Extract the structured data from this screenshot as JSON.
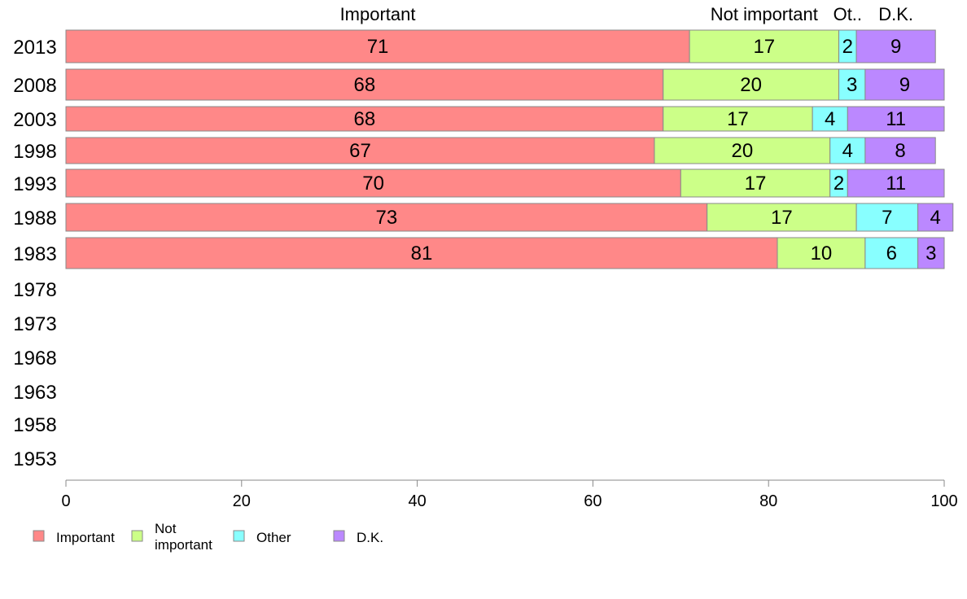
{
  "chart_data": {
    "type": "bar",
    "orientation": "horizontal",
    "stacked": true,
    "categories": [
      "2013",
      "2008",
      "2003",
      "1998",
      "1993",
      "1988",
      "1983",
      "1978",
      "1973",
      "1968",
      "1963",
      "1958",
      "1953"
    ],
    "series": [
      {
        "name": "Important",
        "legend_label": [
          "Important"
        ],
        "header_label": "Important",
        "color": "#ff8888",
        "values": [
          71,
          68,
          68,
          67,
          70,
          73,
          81,
          null,
          null,
          null,
          null,
          null,
          null
        ]
      },
      {
        "name": "Not important",
        "legend_label": [
          "Not",
          "important"
        ],
        "header_label": "Not important",
        "color": "#ccff88",
        "values": [
          17,
          20,
          17,
          20,
          17,
          17,
          10,
          null,
          null,
          null,
          null,
          null,
          null
        ]
      },
      {
        "name": "Other",
        "legend_label": [
          "Other"
        ],
        "header_label": "Ot..",
        "color": "#88ffff",
        "values": [
          2,
          3,
          4,
          4,
          2,
          7,
          6,
          null,
          null,
          null,
          null,
          null,
          null
        ]
      },
      {
        "name": "D.K.",
        "legend_label": [
          "D.K."
        ],
        "header_label": "D.K.",
        "color": "#bb88ff",
        "values": [
          9,
          9,
          11,
          8,
          11,
          4,
          3,
          null,
          null,
          null,
          null,
          null,
          null
        ]
      }
    ],
    "xlim": [
      0,
      100
    ],
    "xticks": [
      0,
      20,
      40,
      60,
      80,
      100
    ],
    "legend_position": "bottom-left",
    "grid": false
  }
}
